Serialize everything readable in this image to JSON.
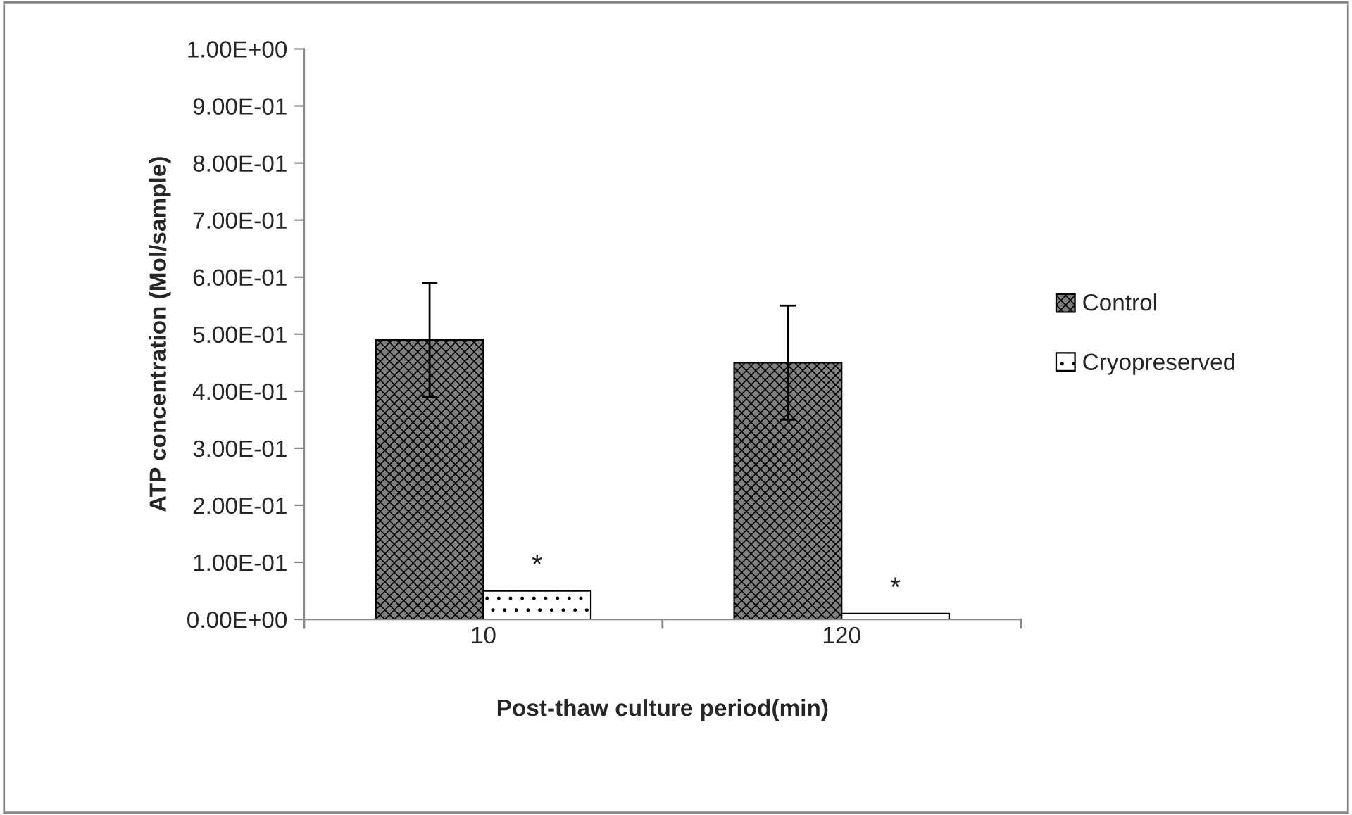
{
  "chart_data": {
    "type": "bar",
    "xlabel": "Post-thaw culture period(min)",
    "ylabel": "ATP concentration (Mol/sample)",
    "categories": [
      "10",
      "120"
    ],
    "series": [
      {
        "name": "Control",
        "color": "#7f7f7f",
        "values": [
          0.49,
          0.45
        ],
        "errors": [
          0.1,
          0.1
        ]
      },
      {
        "name": "Cryopreserved",
        "color": "#ffffff",
        "values": [
          0.05,
          0.01
        ]
      }
    ],
    "ylim": [
      0,
      1
    ],
    "yticks": [
      {
        "value": 0,
        "label": "0.00E+00"
      },
      {
        "value": 0.1,
        "label": "1.00E-01"
      },
      {
        "value": 0.2,
        "label": "2.00E-01"
      },
      {
        "value": 0.3,
        "label": "3.00E-01"
      },
      {
        "value": 0.4,
        "label": "4.00E-01"
      },
      {
        "value": 0.5,
        "label": "5.00E-01"
      },
      {
        "value": 0.6,
        "label": "6.00E-01"
      },
      {
        "value": 0.7,
        "label": "7.00E-01"
      },
      {
        "value": 0.8,
        "label": "8.00E-01"
      },
      {
        "value": 0.9,
        "label": "9.00E-01"
      },
      {
        "value": 1.0,
        "label": "1.00E+00"
      }
    ],
    "annotations": [
      {
        "text": "*",
        "x": "10",
        "y": 0.05
      },
      {
        "text": "*",
        "x": "120",
        "y": 0.01
      }
    ],
    "grid": false,
    "legend": "right"
  }
}
